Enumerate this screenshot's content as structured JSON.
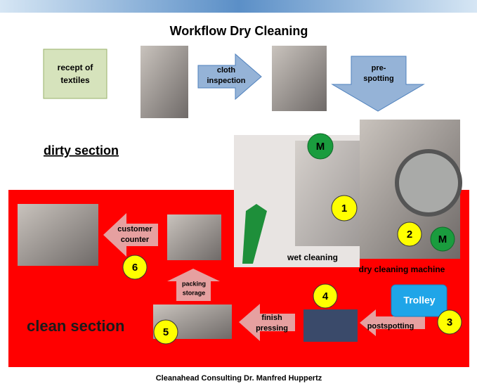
{
  "title": "Workflow Dry Cleaning",
  "steps": {
    "receipt": [
      "recept of",
      "textiles"
    ],
    "inspection": [
      "cloth",
      "inspection"
    ],
    "prespotting": [
      "pre-",
      "spotting"
    ],
    "wet_cleaning": "wet cleaning",
    "dry_cleaning": "dry cleaning machine",
    "trolley": "Trolley",
    "postspotting": "postspotting",
    "finish_pressing": [
      "finish",
      "pressing"
    ],
    "packing_storage": [
      "packing",
      "storage"
    ],
    "customer_counter": [
      "customer",
      "counter"
    ]
  },
  "sections": {
    "dirty": "dirty section",
    "clean": "clean section"
  },
  "machine_markers": [
    "M",
    "M"
  ],
  "step_numbers": [
    "1",
    "2",
    "3",
    "4",
    "5",
    "6"
  ],
  "footer": "Cleanahead Consulting Dr. Manfred Huppertz"
}
